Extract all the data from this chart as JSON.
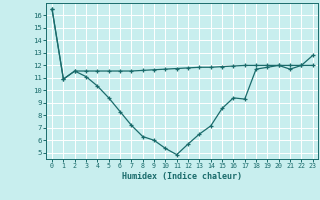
{
  "xlabel": "Humidex (Indice chaleur)",
  "background_color": "#c8eeee",
  "grid_color": "#ffffff",
  "line_color": "#1a6b6b",
  "x_values": [
    0,
    1,
    2,
    3,
    4,
    5,
    6,
    7,
    8,
    9,
    10,
    11,
    12,
    13,
    14,
    15,
    16,
    17,
    18,
    19,
    20,
    21,
    22,
    23
  ],
  "line1_y": [
    16.5,
    10.9,
    11.55,
    11.55,
    11.55,
    11.55,
    11.55,
    11.55,
    11.6,
    11.65,
    11.7,
    11.75,
    11.8,
    11.85,
    11.85,
    11.9,
    11.95,
    12.0,
    12.0,
    12.0,
    12.0,
    12.0,
    12.0,
    12.0
  ],
  "line2_y": [
    16.5,
    10.9,
    11.55,
    11.1,
    10.35,
    9.4,
    8.3,
    7.2,
    6.3,
    6.0,
    5.35,
    4.85,
    5.7,
    6.5,
    7.15,
    8.55,
    9.4,
    9.3,
    11.7,
    11.85,
    12.0,
    11.7,
    12.0,
    12.8
  ],
  "ylim": [
    4.5,
    17.0
  ],
  "yticks": [
    5,
    6,
    7,
    8,
    9,
    10,
    11,
    12,
    13,
    14,
    15,
    16
  ],
  "xlim": [
    -0.5,
    23.5
  ],
  "xticks": [
    0,
    1,
    2,
    3,
    4,
    5,
    6,
    7,
    8,
    9,
    10,
    11,
    12,
    13,
    14,
    15,
    16,
    17,
    18,
    19,
    20,
    21,
    22,
    23
  ]
}
